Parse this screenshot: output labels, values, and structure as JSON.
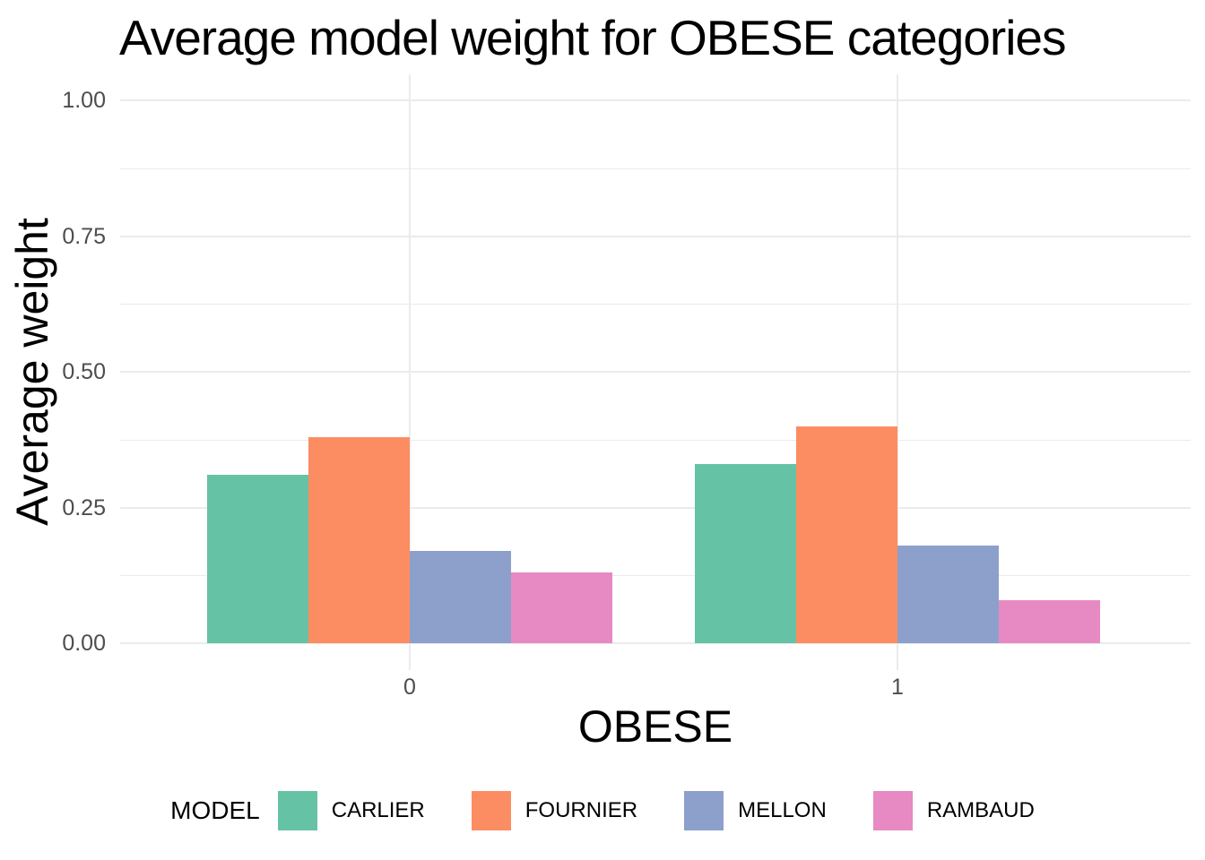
{
  "chart_data": {
    "type": "bar",
    "title": "Average model weight for OBESE categories",
    "xlabel": "OBESE",
    "ylabel": "Average weight",
    "legend_title": "MODEL",
    "legend_position": "bottom",
    "categories": [
      "0",
      "1"
    ],
    "series": [
      {
        "name": "CARLIER",
        "color": "#66C2A5",
        "values": [
          0.31,
          0.33
        ]
      },
      {
        "name": "FOURNIER",
        "color": "#FC8D62",
        "values": [
          0.38,
          0.4
        ]
      },
      {
        "name": "MELLON",
        "color": "#8DA0CB",
        "values": [
          0.17,
          0.18
        ]
      },
      {
        "name": "RAMBAUD",
        "color": "#E78AC3",
        "values": [
          0.13,
          0.08
        ]
      }
    ],
    "yticks": [
      "0.00",
      "0.25",
      "0.50",
      "0.75",
      "1.00"
    ],
    "ylim": [
      0,
      1.05
    ],
    "grid": "major-and-minor-horizontal, major-vertical",
    "colors": {
      "gridline": "#EBEBEB",
      "tick_label": "#4D4D4D",
      "text": "#000000",
      "background": "#FFFFFF"
    }
  }
}
